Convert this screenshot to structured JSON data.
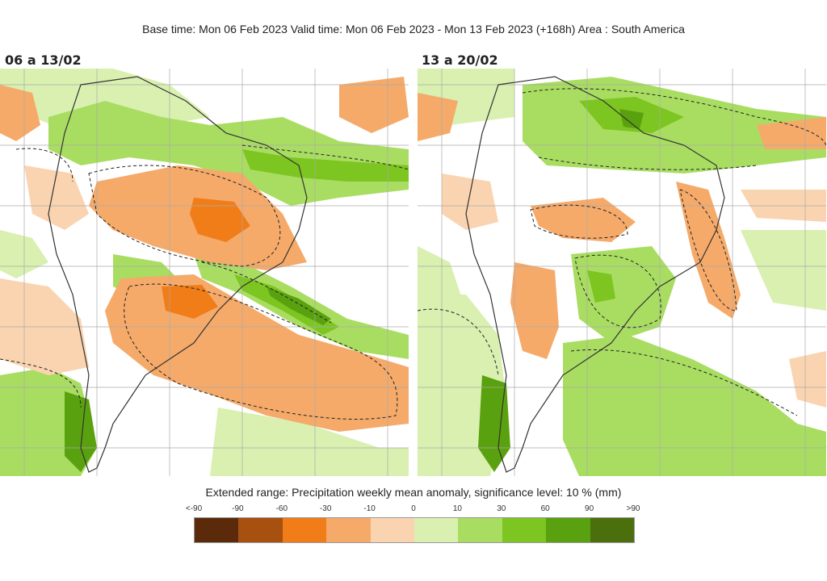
{
  "header": {
    "title": "Base time: Mon 06 Feb 2023 Valid time: Mon 06 Feb 2023 - Mon 13 Feb 2023 (+168h) Area : South America"
  },
  "panels": [
    {
      "title": "06 a 13/02"
    },
    {
      "title": "13 a 20/02"
    }
  ],
  "legend": {
    "title": "Extended range: Precipitation weekly mean anomaly, significance level: 10 % (mm)",
    "ticks": [
      "<-90",
      "-90",
      "-60",
      "-30",
      "-10",
      "0",
      "10",
      "30",
      "60",
      "90",
      ">90"
    ],
    "colors": [
      "#5a2a0a",
      "#a8500f",
      "#f07d18",
      "#f5aa6a",
      "#fad4b0",
      "#d9f0b0",
      "#a9dd62",
      "#7dc520",
      "#5aa10f",
      "#4a6f0c"
    ]
  }
}
